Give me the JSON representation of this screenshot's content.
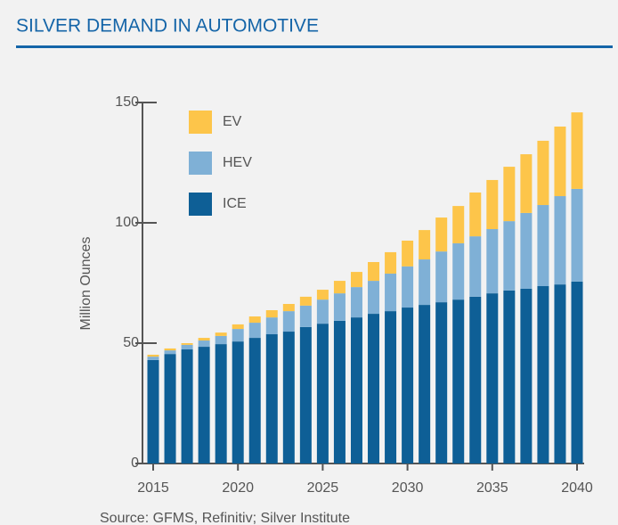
{
  "chart_data": {
    "type": "stacked-bar",
    "title": "SILVER DEMAND IN AUTOMOTIVE",
    "y_label": "Million Ounces",
    "source": "Source: GFMS, Refinitiv; Silver Institute",
    "x": [
      2015,
      2016,
      2017,
      2018,
      2019,
      2020,
      2021,
      2022,
      2023,
      2024,
      2025,
      2026,
      2027,
      2028,
      2029,
      2030,
      2031,
      2032,
      2033,
      2034,
      2035,
      2036,
      2037,
      2038,
      2039,
      2040
    ],
    "xlim": [
      2015,
      2040
    ],
    "xticks": [
      2015,
      2020,
      2025,
      2030,
      2035,
      2040
    ],
    "ylim": [
      0,
      150
    ],
    "yticks": [
      0,
      50,
      100,
      150
    ],
    "series": [
      {
        "name": "ICE",
        "color": "#0e5f96",
        "values": [
          43,
          45.5,
          47.4,
          48.5,
          49.6,
          50.7,
          52.2,
          53.7,
          54.8,
          56.7,
          58.1,
          59.3,
          60.7,
          62.2,
          63.3,
          64.8,
          65.9,
          67,
          68.1,
          69.3,
          70.7,
          71.9,
          72.6,
          73.7,
          74.4,
          75.6
        ]
      },
      {
        "name": "HEV",
        "color": "#7fb0d6",
        "values": [
          1.4,
          1.5,
          1.9,
          2.6,
          3.4,
          5.2,
          6.3,
          7,
          8.5,
          8.9,
          10,
          11.4,
          12.6,
          13.7,
          15.6,
          17.1,
          18.9,
          21.1,
          23.4,
          25.1,
          26.7,
          28.8,
          31.5,
          33.7,
          36.7,
          38.5
        ]
      },
      {
        "name": "EV",
        "color": "#fdc54a",
        "values": [
          0.8,
          0.8,
          0.7,
          1.1,
          1.4,
          1.9,
          2.6,
          3,
          3,
          3.7,
          4.1,
          5.2,
          6.3,
          7.8,
          8.9,
          10.7,
          12.2,
          14.1,
          15.5,
          18.2,
          20.4,
          22.6,
          24.4,
          26.7,
          28.9,
          31.8
        ]
      }
    ]
  }
}
